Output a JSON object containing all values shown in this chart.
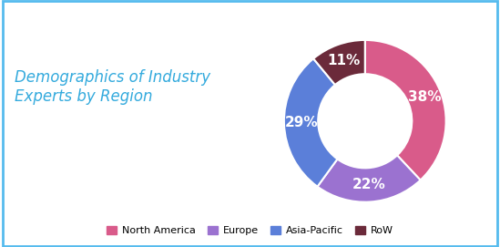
{
  "title": "Demographics of Industry\nExperts by Region",
  "title_color": "#33AADD",
  "title_fontsize": 12,
  "labels": [
    "North America",
    "Europe",
    "Asia-Pacific",
    "RoW"
  ],
  "values": [
    38,
    22,
    29,
    11
  ],
  "colors": [
    "#D95B8A",
    "#9B72D0",
    "#5B7FD9",
    "#6B2A3A"
  ],
  "pct_labels": [
    "38%",
    "22%",
    "29%",
    "11%"
  ],
  "pct_color": "white",
  "pct_fontsize": 11,
  "background_color": "#ffffff",
  "border_color": "#55BBEE",
  "donut_width": 0.42
}
